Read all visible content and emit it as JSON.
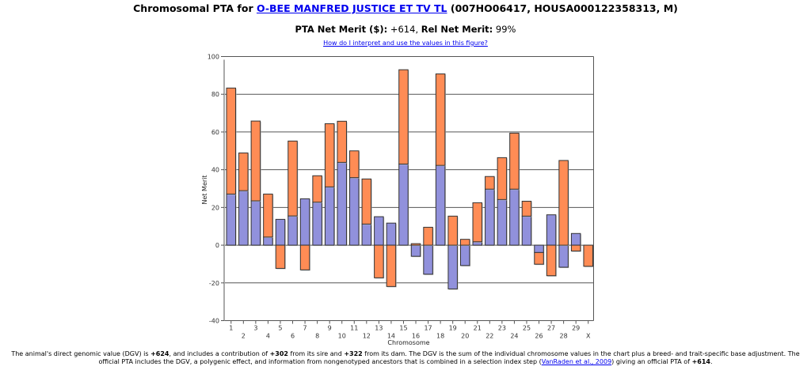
{
  "header": {
    "title_prefix": "Chromosomal PTA for ",
    "animal_name": "O-BEE MANFRED JUSTICE ET TV TL",
    "title_suffix": " (007HO06417, HOUSA000122358313, M)",
    "pta_label": "PTA Net Merit ($):",
    "pta_value": " +614, ",
    "rel_label": "Rel Net Merit:",
    "rel_value": " 99%",
    "help_link": "How do I interpret and use the values in this figure?"
  },
  "footer": {
    "p1": "The animal's direct genomic value (DGV) is ",
    "dgv": "+624",
    "p2": ", and includes a contribution of ",
    "sire": "+302",
    "p3": " from its sire and ",
    "dam": "+322",
    "p4": " from its dam. The DGV is the sum of the individual chromosome values in the chart plus a breed- and trait-specific base adjustment. The official PTA includes the DGV, a polygenic effect, and information from nongenotyped ancestors that is combined in a selection index step (",
    "ref_link": "VanRaden et al., 2009",
    "p5": ") giving an official PTA of ",
    "pta": "+614",
    "p6": "."
  },
  "colors": {
    "series_purple": "#9191dc",
    "series_orange": "#ff8c55",
    "bar_border": "#333333",
    "link": "#0000ee"
  },
  "chart_data": {
    "type": "bar",
    "stacked": true,
    "title": "",
    "xlabel": "Chromosome",
    "ylabel": "Net Merit",
    "ylim": [
      -40,
      100
    ],
    "yticks": [
      -40,
      -20,
      0,
      20,
      40,
      60,
      80,
      100
    ],
    "grid": true,
    "legend": "none",
    "categories": [
      "1",
      "2",
      "3",
      "4",
      "5",
      "6",
      "7",
      "8",
      "9",
      "10",
      "11",
      "12",
      "13",
      "14",
      "15",
      "16",
      "17",
      "18",
      "19",
      "20",
      "21",
      "22",
      "23",
      "24",
      "25",
      "26",
      "27",
      "28",
      "29",
      "X"
    ],
    "series": [
      {
        "name": "purple",
        "color": "#9191dc",
        "values": [
          27.1,
          28.9,
          23.5,
          4.3,
          13.7,
          15.5,
          24.6,
          22.8,
          30.9,
          43.9,
          35.8,
          11.2,
          15.1,
          11.7,
          43.0,
          -5.9,
          -15.4,
          42.3,
          -23.2,
          -10.8,
          1.8,
          29.7,
          24.2,
          29.7,
          15.4,
          -3.9,
          16.1,
          -11.7,
          6.2,
          0
        ]
      },
      {
        "name": "orange",
        "color": "#ff8c55",
        "values": [
          56.2,
          20.0,
          42.3,
          22.8,
          -12.3,
          39.7,
          -13.1,
          14.0,
          33.5,
          21.8,
          14.2,
          23.9,
          -17.3,
          -21.9,
          50.0,
          0.8,
          9.5,
          48.5,
          15.4,
          3.1,
          20.7,
          6.7,
          22.2,
          29.7,
          7.9,
          -6.2,
          -16.2,
          44.9,
          -3.1,
          -11.2
        ]
      }
    ]
  }
}
